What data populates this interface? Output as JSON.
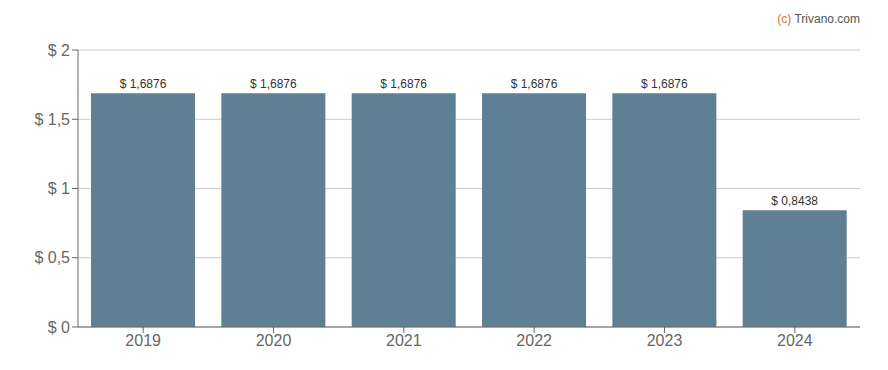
{
  "chart_data": {
    "type": "bar",
    "categories": [
      "2019",
      "2020",
      "2021",
      "2022",
      "2023",
      "2024"
    ],
    "values": [
      1.6876,
      1.6876,
      1.6876,
      1.6876,
      1.6876,
      0.8438
    ],
    "value_labels": [
      "$ 1,6876",
      "$ 1,6876",
      "$ 1,6876",
      "$ 1,6876",
      "$ 1,6876",
      "$ 0,8438"
    ],
    "data_labels": true,
    "color": "#5f7f94",
    "ylim": [
      0,
      2.0
    ],
    "yticks": [
      {
        "value": 0,
        "label": "$ 0"
      },
      {
        "value": 0.5,
        "label": "$ 0,5"
      },
      {
        "value": 1.0,
        "label": "$ 1"
      },
      {
        "value": 1.5,
        "label": "$ 1,5"
      },
      {
        "value": 2.0,
        "label": "$ 2"
      }
    ],
    "grid": true,
    "annotations": [
      {
        "text": "(c)",
        "color": "#e07020"
      },
      {
        "text": " Trivano.com",
        "color": "#555555"
      }
    ]
  }
}
